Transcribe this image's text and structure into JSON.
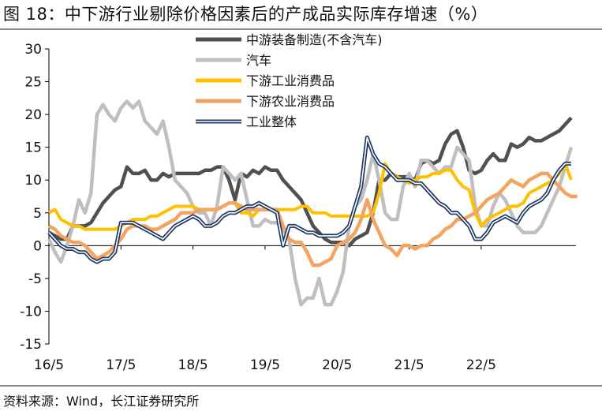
{
  "title": "图 18：中下游行业剔除价格因素后的产成品实际库存增速（%）",
  "source": "资料来源：Wind，长江证券研究所",
  "chart_data": {
    "type": "line",
    "ylim": [
      -15,
      30
    ],
    "yticks": [
      "30",
      "25",
      "20",
      "15",
      "10",
      "5",
      "0",
      "-5",
      "-10",
      "-15"
    ],
    "xticks": [
      "16/5",
      "17/5",
      "18/5",
      "19/5",
      "20/5",
      "21/5",
      "22/5"
    ],
    "legend_position": "top-right",
    "grid": false,
    "series": [
      {
        "name": "中游装备制造(不含汽车)",
        "color": "#505050",
        "style": "thick",
        "values": [
          2,
          1.5,
          1,
          1,
          3,
          3,
          3,
          3.5,
          5,
          6.5,
          7.5,
          8.5,
          9,
          12,
          11,
          11,
          11.5,
          10,
          10,
          11,
          10.5,
          11,
          11,
          11,
          11,
          11,
          11.5,
          11.5,
          12,
          12,
          10,
          7,
          11,
          10.5,
          11.5,
          11,
          12,
          11.5,
          11.5,
          10,
          9,
          8,
          7,
          5,
          3,
          2,
          1,
          0.5,
          0.5,
          0.5,
          0,
          1,
          1.5,
          2,
          5,
          10,
          10,
          11,
          10.5,
          10.5,
          10.5,
          10,
          12.5,
          13,
          12.5,
          13,
          15.5,
          17,
          17.5,
          15,
          11.5,
          11,
          11.5,
          13,
          14,
          13,
          13,
          15.5,
          15,
          15.5,
          16.5,
          16,
          16,
          16.5,
          17,
          17.5,
          18.5,
          19.5
        ]
      },
      {
        "name": "汽车",
        "color": "#bfbfbf",
        "style": "thick",
        "values": [
          1,
          -1,
          -2.5,
          0,
          3,
          7,
          5,
          8,
          20,
          21.5,
          20,
          19,
          21,
          22,
          21,
          22,
          19,
          18,
          17,
          19,
          15,
          10,
          9,
          8,
          6,
          5,
          5,
          3,
          6,
          12,
          11,
          10,
          11,
          7,
          3,
          3,
          4,
          3.5,
          3.5,
          2.5,
          1,
          -5,
          -9,
          -8,
          -8,
          -5,
          -9,
          -9,
          -7,
          -4,
          3,
          6,
          7,
          10,
          14,
          10,
          5,
          4,
          4,
          9,
          11,
          9,
          13,
          13,
          12,
          11,
          12,
          12,
          15,
          14,
          13,
          6,
          3,
          3,
          6,
          8,
          7,
          5,
          3,
          2,
          2,
          2,
          3,
          5,
          7,
          9,
          12,
          15
        ]
      },
      {
        "name": "下游工业消费品",
        "color": "#ffc000",
        "style": "solid",
        "values": [
          5,
          5.5,
          4,
          3.5,
          3,
          3,
          2.5,
          2.5,
          2.5,
          2.5,
          2.5,
          2.5,
          3,
          3.5,
          4,
          4,
          4,
          4.5,
          4.5,
          5,
          5.5,
          6,
          6,
          6,
          6,
          5.5,
          5.5,
          5.5,
          5.5,
          6,
          6.5,
          6.5,
          5,
          5,
          4.5,
          5.5,
          5.5,
          5.5,
          5.5,
          5.5,
          5.5,
          5.5,
          6,
          6,
          5,
          5,
          5,
          4.5,
          4.5,
          4.5,
          4.5,
          4.5,
          4.5,
          4.5,
          5,
          8,
          12.5,
          11,
          10.5,
          10,
          9.5,
          10,
          10.5,
          10.5,
          11,
          11,
          11.5,
          11.5,
          10,
          9,
          8.5,
          5,
          3,
          4,
          4.5,
          5,
          5.5,
          6,
          6,
          6.5,
          8,
          8.5,
          9,
          9.5,
          10,
          11,
          12.5,
          10
        ]
      },
      {
        "name": "下游农业消费品",
        "color": "#f4a460",
        "style": "thick",
        "values": [
          3,
          2.5,
          1.5,
          1,
          0.5,
          0.5,
          0,
          -1,
          -2,
          -1.5,
          -1,
          0,
          1,
          2.5,
          3,
          3,
          3,
          2.5,
          2.5,
          3,
          3.5,
          4,
          5,
          5,
          5,
          5.5,
          5.5,
          5.5,
          5.5,
          6,
          6.5,
          6.5,
          6,
          5.5,
          5.5,
          5.5,
          5.5,
          5.5,
          5.5,
          3,
          1,
          0.5,
          0.5,
          -1,
          -3,
          -3,
          -2.5,
          -2,
          0,
          0.5,
          1,
          2,
          4,
          7,
          4,
          2,
          0,
          -0.5,
          -1.5,
          0,
          0,
          -0.5,
          0,
          0,
          1,
          1.5,
          2.5,
          3,
          4,
          4,
          4.5,
          5,
          6,
          7,
          7.5,
          8,
          9,
          10,
          9.5,
          9,
          10,
          10.5,
          11,
          11,
          10,
          9,
          8,
          7.5,
          7.5
        ]
      },
      {
        "name": "工业整体",
        "color": "#1f3864",
        "style": "double",
        "values": [
          2,
          1,
          0,
          -0.5,
          -0.5,
          -1,
          -1,
          -2,
          -2.5,
          -2,
          -2,
          -1,
          3.5,
          3.5,
          3.5,
          3,
          2.5,
          2,
          1.5,
          1,
          2,
          3,
          3.5,
          4,
          4.5,
          4,
          3,
          3,
          3.5,
          4.5,
          5,
          5,
          5.5,
          6,
          6,
          6.5,
          6,
          5.5,
          5,
          0,
          3,
          3,
          2.5,
          2,
          2,
          1.5,
          1.5,
          1.5,
          1.5,
          2,
          3,
          6,
          9,
          16.5,
          14,
          12.5,
          12,
          11,
          10,
          10,
          10,
          9.5,
          9.5,
          8.5,
          7.5,
          6.5,
          6,
          5,
          5,
          4,
          3,
          1,
          1,
          2,
          3.5,
          4,
          4.5,
          4,
          3.5,
          5,
          6,
          6.5,
          7,
          8,
          10,
          11.5,
          12.5,
          12.5
        ]
      }
    ]
  }
}
